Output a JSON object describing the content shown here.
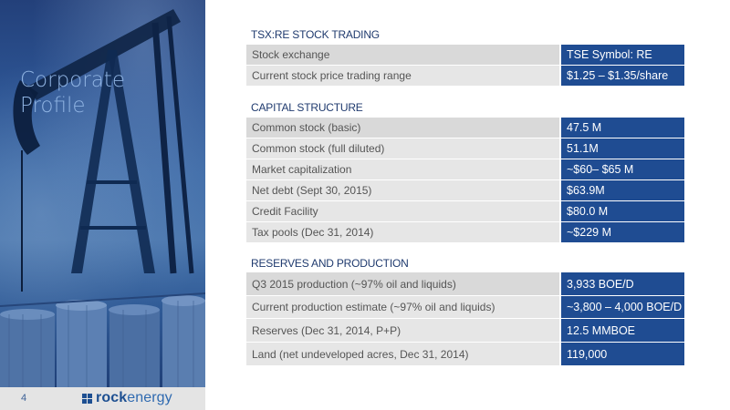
{
  "slide": {
    "title_line1": "Corporate",
    "title_line2": "Profile",
    "page_number": "4"
  },
  "logo": {
    "text_bold": "rock",
    "text_light": "energy"
  },
  "sections": [
    {
      "title": "TSX:RE STOCK TRADING",
      "rows": [
        {
          "label": "Stock exchange",
          "value": "TSE Symbol: RE"
        },
        {
          "label": "Current stock price trading range",
          "value": "$1.25 – $1.35/share"
        }
      ]
    },
    {
      "title": "CAPITAL STRUCTURE",
      "rows": [
        {
          "label": "Common stock (basic)",
          "value": "47.5 M"
        },
        {
          "label": "Common stock (full diluted)",
          "value": "51.1M"
        },
        {
          "label": "Market capitalization",
          "value": "~$60– $65 M"
        },
        {
          "label": "Net debt (Sept 30, 2015)",
          "value": "$63.9M"
        },
        {
          "label": "Credit Facility",
          "value": "$80.0 M"
        },
        {
          "label": "Tax pools (Dec 31, 2014)",
          "value": "~$229 M"
        }
      ]
    },
    {
      "title": "RESERVES AND PRODUCTION",
      "rows": [
        {
          "label": "Q3 2015 production (~97% oil and liquids)",
          "value": " 3,933 BOE/D"
        },
        {
          "label": "Current production estimate (~97% oil and liquids)",
          "value": "~3,800 – 4,000 BOE/D"
        },
        {
          "label": "Reserves (Dec 31, 2014, P+P)",
          "value": "12.5 MMBOE"
        },
        {
          "label": "Land (net undeveloped acres, Dec 31, 2014)",
          "value": "119,000"
        }
      ]
    }
  ],
  "colors": {
    "value_cell": "#1f4c92",
    "label_cell": "#e6e6e6",
    "title_text": "#8fb3e2"
  }
}
